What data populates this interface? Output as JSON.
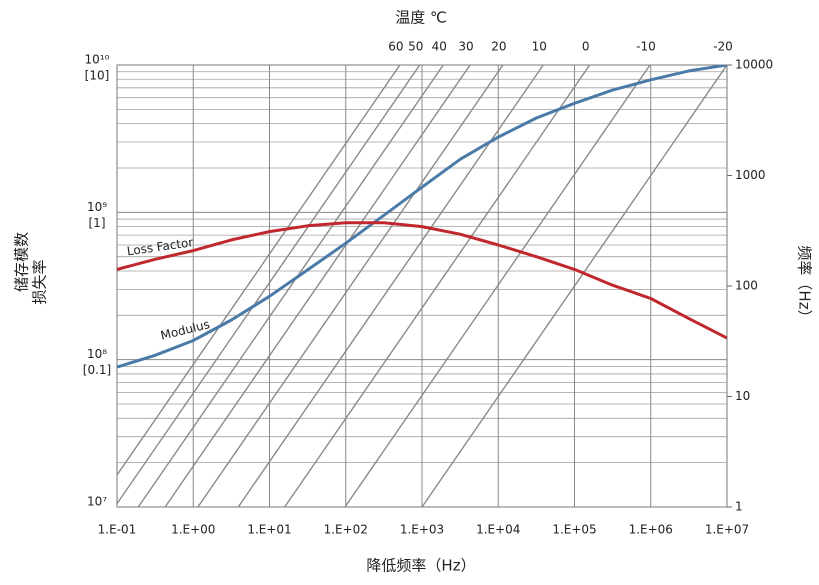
{
  "chart_data": {
    "type": "line",
    "top_axis_label": "温度 ℃",
    "ylabel": [
      "储存模数",
      "损失率"
    ],
    "y2label": "频率（Hz）",
    "xlabel": "降低频率（Hz）",
    "xscale": "log",
    "yscale": "log",
    "y2scale": "log",
    "lfscale": "log",
    "grid": true,
    "xlim": [
      0.1,
      10000000
    ],
    "xticks": [
      {
        "value": 0.1,
        "label": "1.E-01"
      },
      {
        "value": 1,
        "label": "1.E+00"
      },
      {
        "value": 10,
        "label": "1.E+01"
      },
      {
        "value": 100,
        "label": "1.E+02"
      },
      {
        "value": 1000,
        "label": "1.E+03"
      },
      {
        "value": 10000,
        "label": "1.E+04"
      },
      {
        "value": 100000,
        "label": "1.E+05"
      },
      {
        "value": 1000000,
        "label": "1.E+06"
      },
      {
        "value": 10000000,
        "label": "1.E+07"
      }
    ],
    "ylim": [
      10000000,
      10000000000
    ],
    "yticks": [
      {
        "value": 10000000,
        "label": "10⁷"
      },
      {
        "value": 100000000,
        "label": "10⁸"
      },
      {
        "value": 1000000000,
        "label": "10⁹"
      },
      {
        "value": 10000000000,
        "label": "10¹⁰"
      }
    ],
    "lflim": [
      0.01,
      10
    ],
    "lfticks": [
      {
        "value": 0.1,
        "label": "[0.1]"
      },
      {
        "value": 1,
        "label": "[1]"
      },
      {
        "value": 10,
        "label": "[10]"
      }
    ],
    "y2lim": [
      1,
      10000
    ],
    "y2ticks": [
      1,
      10,
      100,
      1000,
      10000
    ],
    "x": [
      0.1,
      0.316,
      1,
      3.16,
      10,
      31.6,
      100,
      316,
      1000,
      3160,
      10000,
      31600,
      100000,
      316000,
      1000000,
      3160000,
      10000000
    ],
    "series": [
      {
        "name": "Modulus",
        "color": "#4a7ba8",
        "axis": "y",
        "values": [
          89000000,
          107000000,
          135000000,
          186000000,
          269000000,
          407000000,
          617000000,
          955000000,
          1480000000,
          2290000000,
          3240000000,
          4370000000,
          5500000000,
          6760000000,
          7940000000,
          9120000000,
          10000000000
        ]
      },
      {
        "name": "Loss Factor",
        "color": "#c0282d",
        "axis": "lf",
        "values": [
          0.41,
          0.48,
          0.55,
          0.65,
          0.74,
          0.81,
          0.85,
          0.85,
          0.8,
          0.71,
          0.6,
          0.5,
          0.41,
          0.32,
          0.26,
          0.19,
          0.14
        ]
      }
    ],
    "isotherms": {
      "color": "#8a8a8a",
      "temperatures": [
        60,
        50,
        40,
        30,
        20,
        10,
        0,
        -10,
        -20
      ],
      "shift_factors": [
        0.0513,
        0.0933,
        0.19,
        0.427,
        1.15,
        3.89,
        15.8,
        97.7,
        1000
      ]
    }
  }
}
